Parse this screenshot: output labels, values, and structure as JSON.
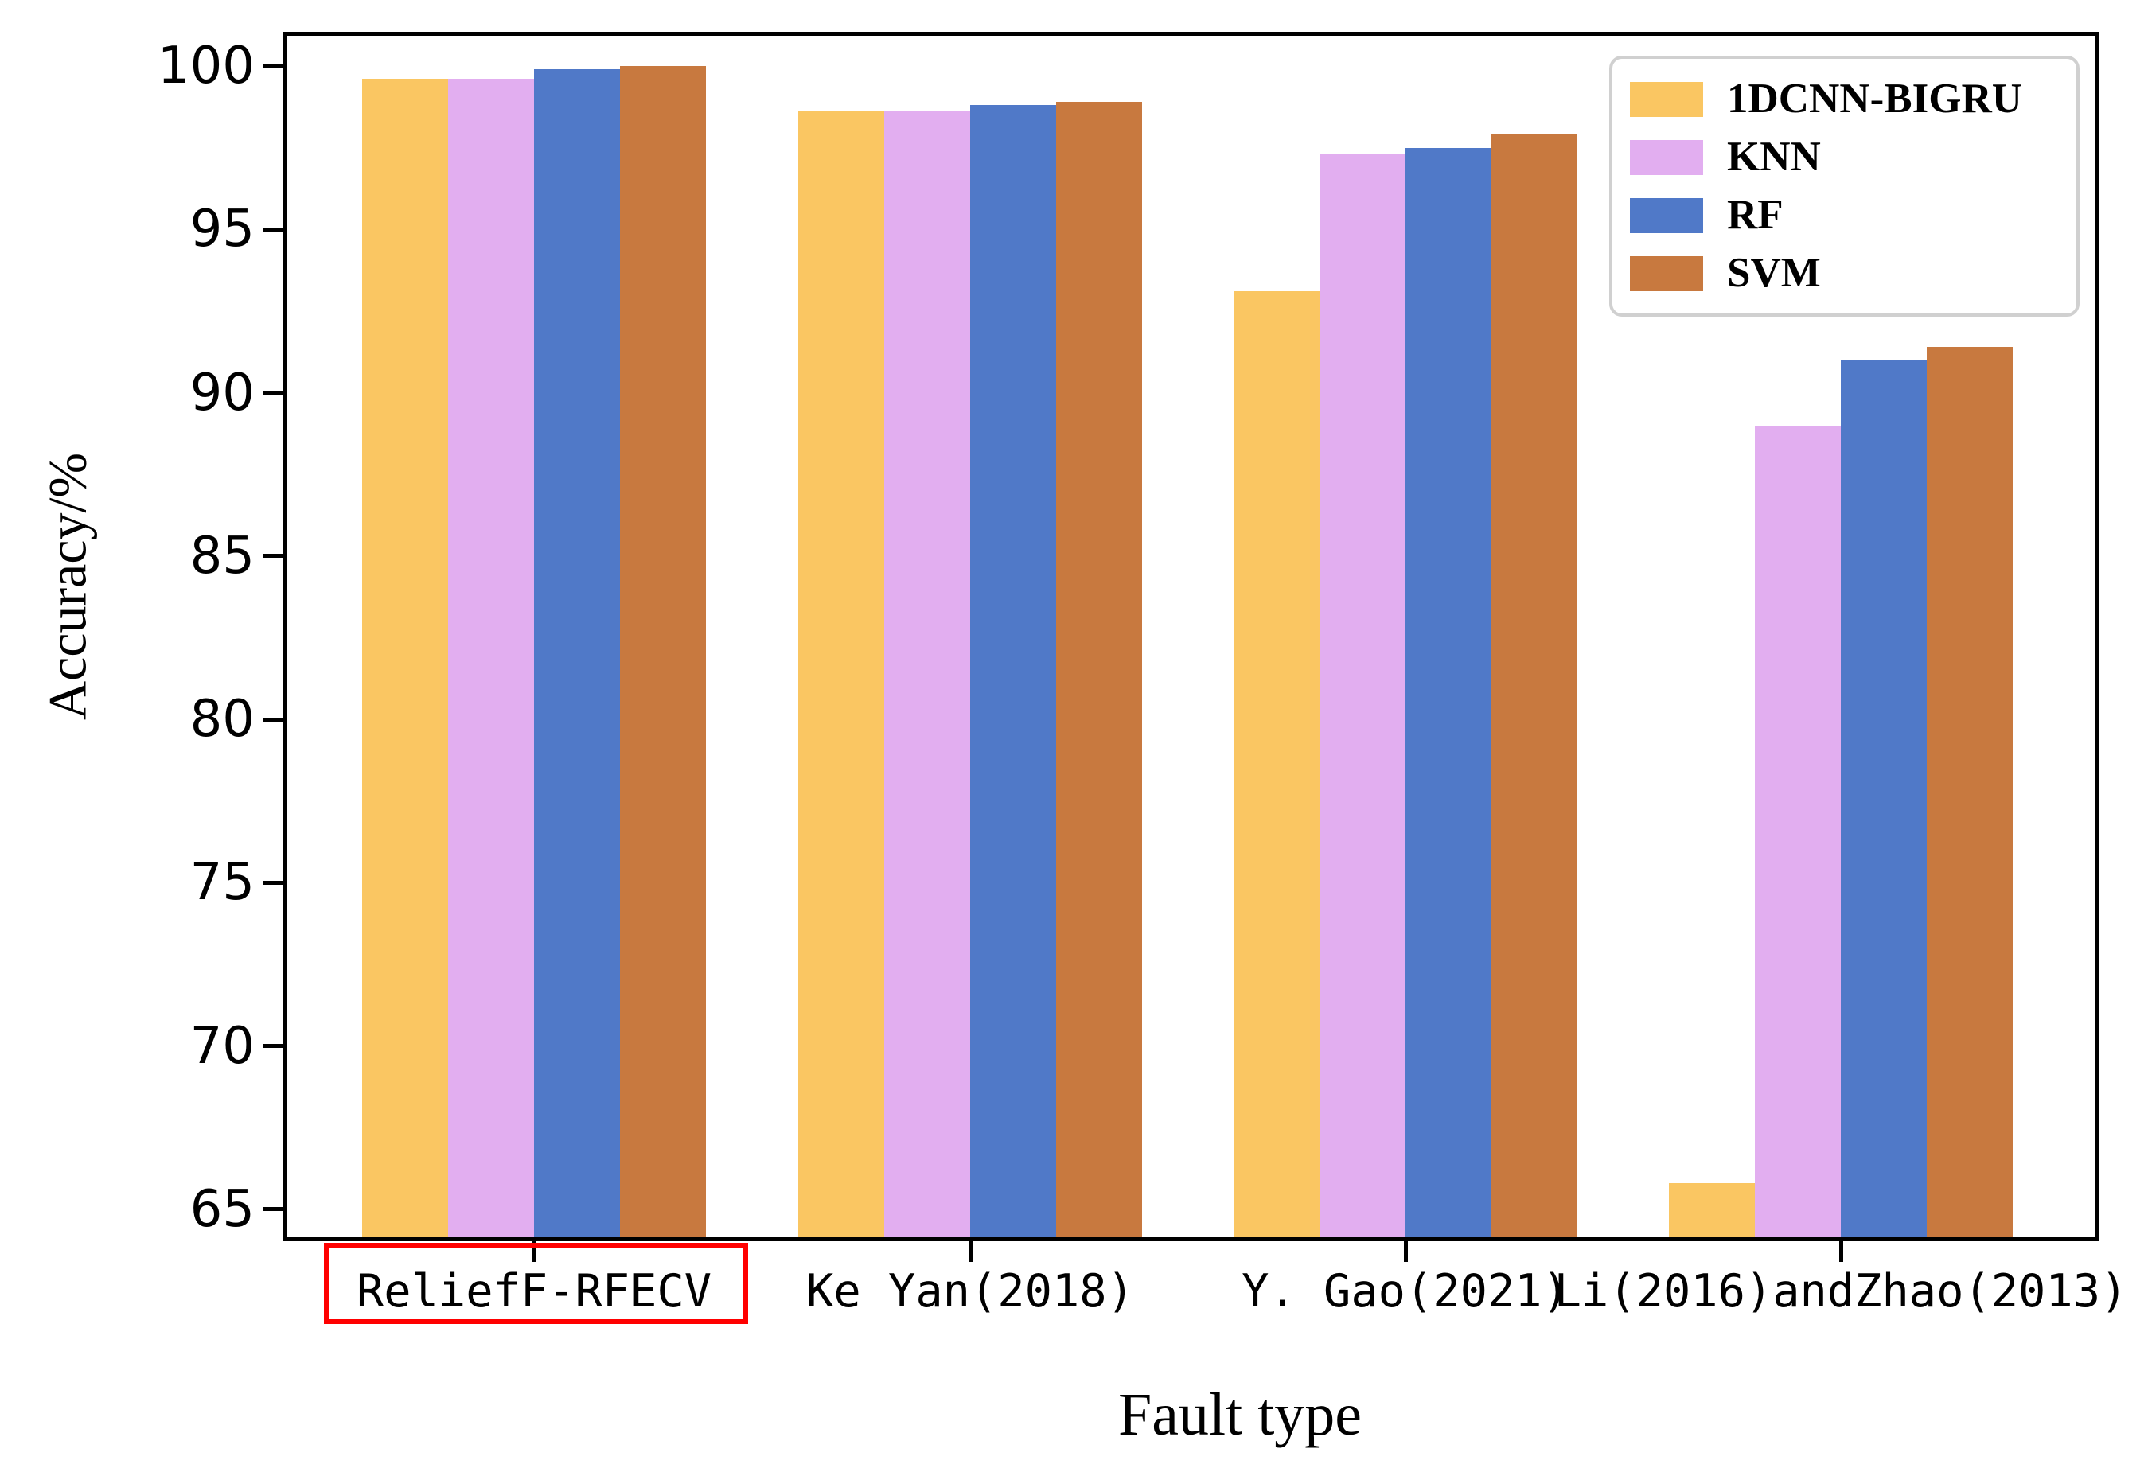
{
  "chart_data": {
    "type": "bar",
    "title": "",
    "xlabel": "Fault type",
    "ylabel": "Accuracy/%",
    "categories": [
      "ReliefF-RFECV",
      "Ke Yan(2018)",
      "Y. Gao(2021)",
      "Li(2016)andZhao(2013)"
    ],
    "series": [
      {
        "name": "1DCNN-BIGRU",
        "color": "#FAC662",
        "values": [
          99.6,
          98.6,
          93.1,
          65.8
        ]
      },
      {
        "name": "KNN",
        "color": "#E2AEF0",
        "values": [
          99.6,
          98.6,
          97.3,
          89.0
        ]
      },
      {
        "name": "RF",
        "color": "#5079C8",
        "values": [
          99.9,
          98.8,
          97.5,
          91.0
        ]
      },
      {
        "name": "SVM",
        "color": "#C8793F",
        "values": [
          100.0,
          98.9,
          97.9,
          91.4
        ]
      }
    ],
    "yticks": [
      65,
      70,
      75,
      80,
      85,
      90,
      95,
      100
    ],
    "ylim": [
      64,
      101
    ],
    "grid": false,
    "legend_position": "upper right",
    "highlighted_category": "ReliefF-RFECV",
    "highlight_box_color": "#FF0000",
    "axis_color": "#000000"
  }
}
